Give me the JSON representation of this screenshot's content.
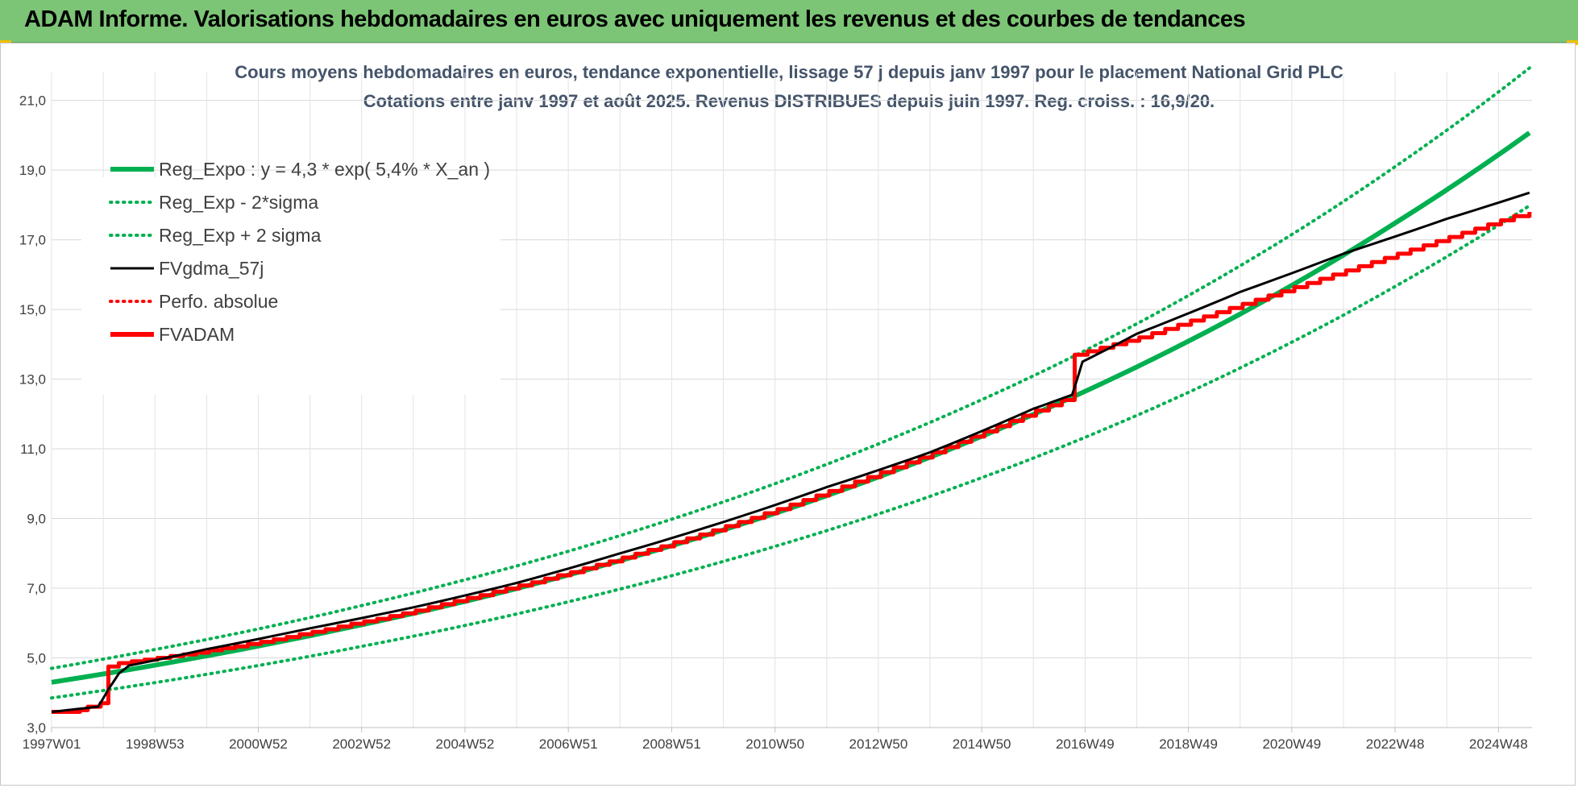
{
  "header": {
    "title": "ADAM Informe. Valorisations hebdomadaires en euros avec uniquement les revenus et des courbes de tendances"
  },
  "colors": {
    "banner": "#7cc576",
    "reg_green": "#00b050",
    "black": "#000000",
    "red": "#ff0000"
  },
  "chart_data": {
    "type": "line",
    "title": "Cours moyens hebdomadaires en euros, tendance exponentielle, lissage 57 j depuis janv 1997 pour le placement National Grid PLC",
    "subtitle": "Cotations entre janv 1997 et août 2025.  Revenus DISTRIBUES depuis juin 1997.  Reg. croiss. : 16,9/20.",
    "ylim": [
      3.0,
      21.8
    ],
    "yticks": [
      "21,0",
      "19,0",
      "17,0",
      "15,0",
      "13,0",
      "11,0",
      "9,0",
      "7,0",
      "5,0",
      "3,0"
    ],
    "xlim": [
      1997.0,
      2025.65
    ],
    "xticks": [
      {
        "label": "1997W01",
        "year": 1997.0
      },
      {
        "label": "1998W53",
        "year": 1999.0
      },
      {
        "label": "2000W52",
        "year": 2001.0
      },
      {
        "label": "2002W52",
        "year": 2003.0
      },
      {
        "label": "2004W52",
        "year": 2005.0
      },
      {
        "label": "2006W51",
        "year": 2007.0
      },
      {
        "label": "2008W51",
        "year": 2009.0
      },
      {
        "label": "2010W50",
        "year": 2011.0
      },
      {
        "label": "2012W50",
        "year": 2013.0
      },
      {
        "label": "2014W50",
        "year": 2015.0
      },
      {
        "label": "2016W49",
        "year": 2017.0
      },
      {
        "label": "2018W49",
        "year": 2019.0
      },
      {
        "label": "2020W49",
        "year": 2021.0
      },
      {
        "label": "2022W48",
        "year": 2023.0
      },
      {
        "label": "2024W48",
        "year": 2025.0
      }
    ],
    "grid": true,
    "legend_position": "top-left",
    "series": [
      {
        "name": "Reg_Expo : y = 4,3 * exp( 5,4% *  X_an )",
        "style": "solid",
        "color": "#00b050",
        "x": [
          1997.0,
          1999.0,
          2001.0,
          2003.0,
          2005.0,
          2007.0,
          2009.0,
          2011.0,
          2013.0,
          2015.0,
          2017.0,
          2019.0,
          2021.0,
          2023.0,
          2025.6
        ],
        "y": [
          4.3,
          4.79,
          5.34,
          5.95,
          6.62,
          7.38,
          8.22,
          9.15,
          10.19,
          11.36,
          12.65,
          14.09,
          15.69,
          17.48,
          20.07
        ]
      },
      {
        "name": "Reg_Exp - 2*sigma",
        "style": "dotted",
        "color": "#00b050",
        "x": [
          1997.0,
          1999.0,
          2001.0,
          2003.0,
          2005.0,
          2007.0,
          2009.0,
          2011.0,
          2013.0,
          2015.0,
          2017.0,
          2019.0,
          2021.0,
          2023.0,
          2025.6
        ],
        "y": [
          3.85,
          4.29,
          4.78,
          5.33,
          5.93,
          6.61,
          7.36,
          8.2,
          9.13,
          10.17,
          11.33,
          12.62,
          14.06,
          15.66,
          17.98
        ]
      },
      {
        "name": "Reg_Exp + 2 sigma",
        "style": "dotted",
        "color": "#00b050",
        "x": [
          1997.0,
          1999.0,
          2001.0,
          2003.0,
          2005.0,
          2007.0,
          2009.0,
          2011.0,
          2013.0,
          2015.0,
          2017.0,
          2019.0,
          2021.0,
          2023.0,
          2025.6
        ],
        "y": [
          4.7,
          5.24,
          5.83,
          6.5,
          7.24,
          8.06,
          8.98,
          10.0,
          11.14,
          12.41,
          13.82,
          15.4,
          17.15,
          19.1,
          21.93
        ]
      },
      {
        "name": "FVgdma_57j",
        "style": "solid",
        "color": "#000000",
        "x": [
          1997.0,
          1997.9,
          1998.1,
          1998.3,
          1998.5,
          2000.0,
          2002.0,
          2004.0,
          2006.0,
          2008.0,
          2010.0,
          2012.0,
          2014.0,
          2016.0,
          2016.75,
          2016.95,
          2018.0,
          2020.0,
          2022.0,
          2024.0,
          2025.6
        ],
        "y": [
          3.45,
          3.6,
          4.1,
          4.55,
          4.78,
          5.25,
          5.85,
          6.45,
          7.15,
          8.0,
          8.9,
          9.9,
          10.9,
          12.15,
          12.55,
          13.5,
          14.3,
          15.5,
          16.6,
          17.6,
          18.35
        ]
      },
      {
        "name": "Perfo. absolue",
        "style": "dotted",
        "color": "#ff0000",
        "x": [],
        "y": []
      },
      {
        "name": "FVADAM",
        "style": "step",
        "color": "#ff0000",
        "x": [
          1997.0,
          1997.55,
          1997.7,
          1997.95,
          1998.1,
          1998.3,
          1998.55,
          1998.8,
          1999.05,
          1999.3,
          1999.55,
          1999.8,
          2000.05,
          2000.3,
          2000.55,
          2000.8,
          2001.05,
          2001.3,
          2001.55,
          2001.8,
          2002.05,
          2002.3,
          2002.55,
          2002.8,
          2003.05,
          2003.3,
          2003.55,
          2003.8,
          2004.05,
          2004.3,
          2004.55,
          2004.8,
          2005.05,
          2005.3,
          2005.55,
          2005.8,
          2006.05,
          2006.3,
          2006.55,
          2006.8,
          2007.05,
          2007.3,
          2007.55,
          2007.8,
          2008.05,
          2008.3,
          2008.55,
          2008.8,
          2009.05,
          2009.3,
          2009.55,
          2009.8,
          2010.05,
          2010.3,
          2010.55,
          2010.8,
          2011.05,
          2011.3,
          2011.55,
          2011.8,
          2012.05,
          2012.3,
          2012.55,
          2012.8,
          2013.05,
          2013.3,
          2013.55,
          2013.8,
          2014.05,
          2014.3,
          2014.55,
          2014.8,
          2015.05,
          2015.3,
          2015.55,
          2015.8,
          2016.05,
          2016.3,
          2016.55,
          2016.8,
          2017.05,
          2017.3,
          2017.55,
          2017.8,
          2018.05,
          2018.3,
          2018.55,
          2018.8,
          2019.05,
          2019.3,
          2019.55,
          2019.8,
          2020.05,
          2020.3,
          2020.55,
          2020.8,
          2021.05,
          2021.3,
          2021.55,
          2021.8,
          2022.05,
          2022.3,
          2022.55,
          2022.8,
          2023.05,
          2023.3,
          2023.55,
          2023.8,
          2024.05,
          2024.3,
          2024.55,
          2024.8,
          2025.05,
          2025.3,
          2025.6
        ],
        "y": [
          3.45,
          3.5,
          3.6,
          3.7,
          4.75,
          4.85,
          4.9,
          4.95,
          5.0,
          5.05,
          5.1,
          5.15,
          5.22,
          5.28,
          5.33,
          5.4,
          5.46,
          5.53,
          5.6,
          5.68,
          5.75,
          5.82,
          5.9,
          5.98,
          6.05,
          6.12,
          6.2,
          6.28,
          6.36,
          6.45,
          6.54,
          6.63,
          6.72,
          6.8,
          6.9,
          6.99,
          7.08,
          7.17,
          7.27,
          7.37,
          7.46,
          7.57,
          7.67,
          7.77,
          7.88,
          7.99,
          8.1,
          8.2,
          8.32,
          8.43,
          8.54,
          8.66,
          8.78,
          8.9,
          9.02,
          9.15,
          9.27,
          9.4,
          9.53,
          9.66,
          9.79,
          9.92,
          10.06,
          10.19,
          10.33,
          10.47,
          10.61,
          10.75,
          10.9,
          11.05,
          11.2,
          11.35,
          11.5,
          11.65,
          11.8,
          11.95,
          12.1,
          12.25,
          12.4,
          13.7,
          13.8,
          13.9,
          14.0,
          14.1,
          14.2,
          14.32,
          14.44,
          14.56,
          14.68,
          14.8,
          14.92,
          15.04,
          15.16,
          15.28,
          15.4,
          15.52,
          15.64,
          15.76,
          15.88,
          16.0,
          16.12,
          16.24,
          16.36,
          16.48,
          16.6,
          16.72,
          16.84,
          16.96,
          17.08,
          17.2,
          17.32,
          17.44,
          17.56,
          17.68,
          17.8
        ]
      }
    ]
  }
}
